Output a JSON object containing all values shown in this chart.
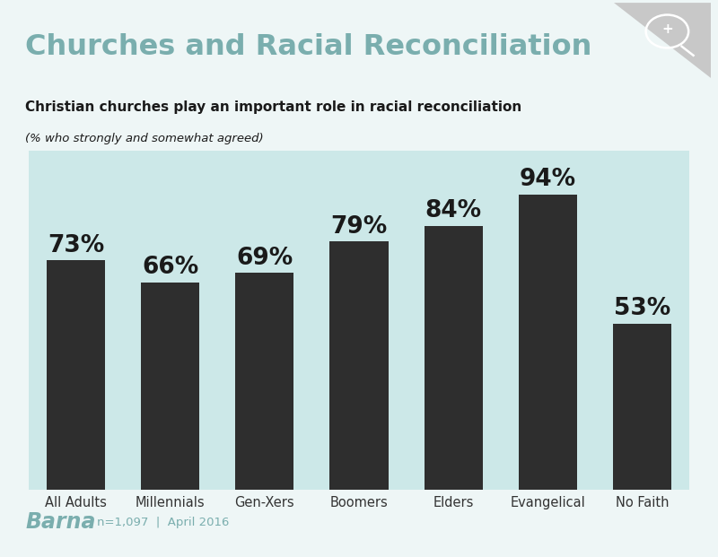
{
  "title": "Churches and Racial Reconciliation",
  "subtitle_bold": "Christian churches play an important role in racial reconciliation",
  "subtitle_italic": "(% who strongly and somewhat agreed)",
  "categories": [
    "All Adults",
    "Millennials",
    "Gen-Xers",
    "Boomers",
    "Elders",
    "Evangelical",
    "No Faith"
  ],
  "values": [
    73,
    66,
    69,
    79,
    84,
    94,
    53
  ],
  "bar_color": "#2e2e2e",
  "bg_color_outer": "#eef6f6",
  "bg_color_chart": "#cce8e8",
  "title_color": "#7aaeae",
  "subtitle_color": "#1a1a1a",
  "label_color": "#1a1a1a",
  "tick_color": "#333333",
  "barna_color": "#7aaeae",
  "footer_text": "n=1,097  |  April 2016",
  "barna_label": "Barna",
  "ylim": [
    0,
    108
  ],
  "bar_width": 0.62
}
